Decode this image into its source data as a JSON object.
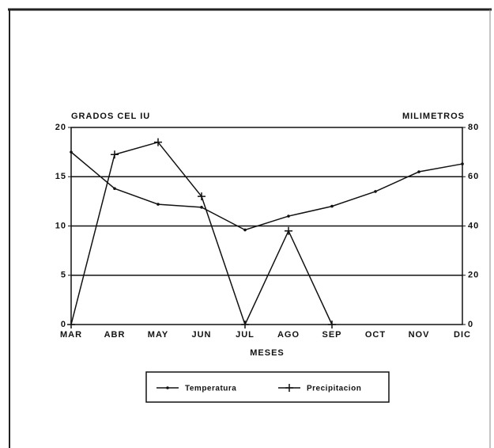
{
  "chart_data": {
    "type": "line",
    "y_label": "GRADOS CEL IU",
    "y2_label": "MILIMETROS",
    "x_label": "MESES",
    "categories": [
      "MAR",
      "ABR",
      "MAY",
      "JUN",
      "JUL",
      "AGO",
      "SEP",
      "OCT",
      "NOV",
      "DIC"
    ],
    "series": [
      {
        "name": "Temperatura",
        "color": "#111111",
        "marker": "dot",
        "values": [
          17.5,
          13.8,
          12.2,
          11.9,
          9.6,
          11,
          12,
          13.5,
          15.5,
          16.3
        ]
      },
      {
        "name": "Precipitacion",
        "color": "#111111",
        "marker": "plus",
        "axis": "y2",
        "values": [
          0,
          69,
          74,
          52,
          0,
          38,
          0,
          null,
          null,
          null
        ]
      }
    ],
    "ylim": [
      0,
      20
    ],
    "yticks": [
      0,
      5,
      10,
      15,
      20
    ],
    "y2lim": [
      0,
      80
    ],
    "y2ticks": [
      0,
      20,
      40,
      60,
      80
    ],
    "grid": true,
    "legend": "bottom"
  }
}
